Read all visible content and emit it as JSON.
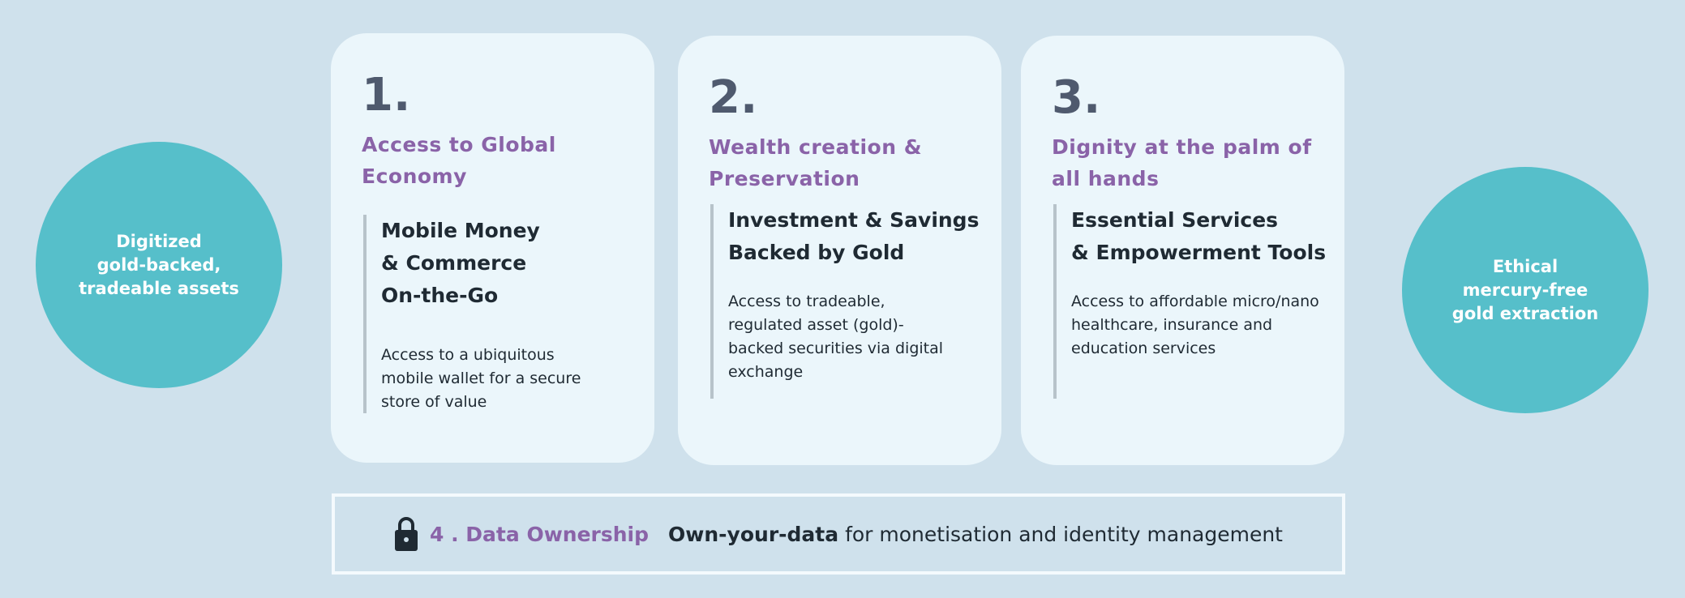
{
  "colors": {
    "background": "#cfe1ec",
    "card": "#ebf6fb",
    "circle": "#56bfca",
    "accent_purple": "#8a63a8",
    "number": "#4f5a6e",
    "text": "#1f2a33"
  },
  "left_circle": {
    "text": "Digitized\ngold-backed,\ntradeable assets"
  },
  "right_circle": {
    "text": "Ethical\nmercury-free\ngold extraction"
  },
  "cards": [
    {
      "number": "1.",
      "title": "Access to Global\nEconomy",
      "heading": "Mobile Money\n& Commerce\nOn-the-Go",
      "body": "Access to a ubiquitous\nmobile wallet for a secure\nstore of value"
    },
    {
      "number": "2.",
      "title": "Wealth creation &\nPreservation",
      "heading": "Investment & Savings\nBacked by Gold",
      "body": "Access to tradeable,\nregulated asset (gold)-\nbacked securities via digital\nexchange"
    },
    {
      "number": "3.",
      "title": "Dignity at the palm of\nall hands",
      "heading": "Essential Services\n& Empowerment Tools",
      "body": "Access to affordable micro/nano\nhealthcare, insurance and\neducation services"
    }
  ],
  "data_ownership": {
    "icon": "lock-icon",
    "title": "4 . Data Ownership",
    "bold": "Own-your-data",
    "rest": "for monetisation and identity management"
  }
}
